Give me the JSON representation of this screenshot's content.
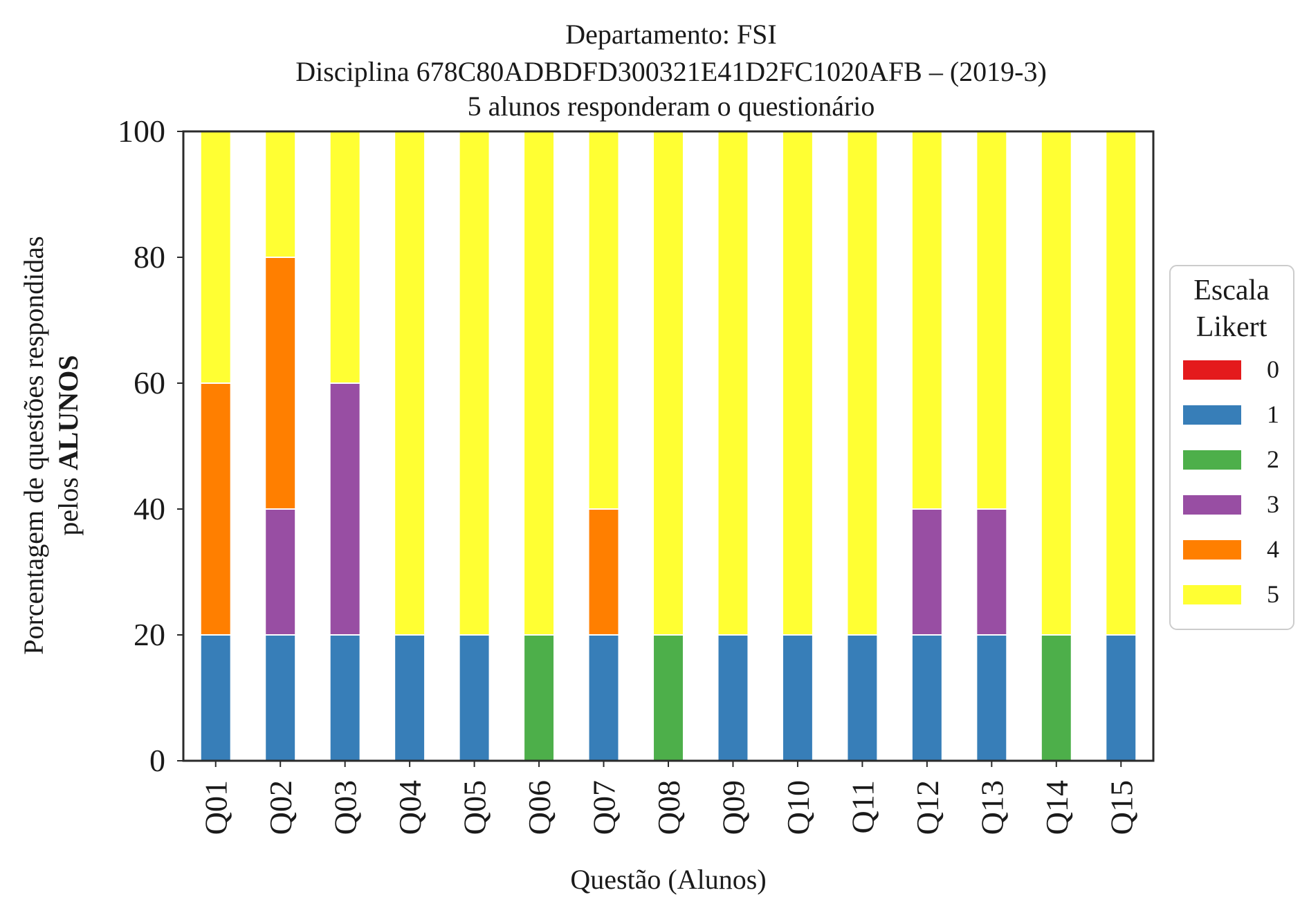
{
  "chart_data": {
    "type": "bar",
    "stacked": true,
    "title_lines": [
      "Departamento: FSI",
      "Disciplina 678C80ADBDFD300321E41D2FC1020AFB – (2019-3)",
      "5 alunos responderam o questionário"
    ],
    "xlabel": "Questão (Alunos)",
    "ylabel_line1": "Porcentagem de questões respondidas",
    "ylabel_line2_prefix": "pelos ",
    "ylabel_line2_bold": "ALUNOS",
    "ylim": [
      0,
      100
    ],
    "yticks": [
      0,
      20,
      40,
      60,
      80,
      100
    ],
    "grid": false,
    "categories": [
      "Q01",
      "Q02",
      "Q03",
      "Q04",
      "Q05",
      "Q06",
      "Q07",
      "Q08",
      "Q09",
      "Q10",
      "Q11",
      "Q12",
      "Q13",
      "Q14",
      "Q15"
    ],
    "legend": {
      "title_lines": [
        "Escala",
        "Likert"
      ],
      "placement": "right-outside"
    },
    "series": [
      {
        "name": "0",
        "color": "#e41a1c",
        "values": [
          0,
          0,
          0,
          0,
          0,
          0,
          0,
          0,
          0,
          0,
          0,
          0,
          0,
          0,
          0
        ]
      },
      {
        "name": "1",
        "color": "#377eb8",
        "values": [
          20,
          20,
          20,
          20,
          20,
          0,
          20,
          0,
          20,
          20,
          20,
          20,
          20,
          0,
          20
        ]
      },
      {
        "name": "2",
        "color": "#4daf4a",
        "values": [
          0,
          0,
          0,
          0,
          0,
          20,
          0,
          20,
          0,
          0,
          0,
          0,
          0,
          20,
          0
        ]
      },
      {
        "name": "3",
        "color": "#984ea3",
        "values": [
          0,
          20,
          40,
          0,
          0,
          0,
          0,
          0,
          0,
          0,
          0,
          20,
          20,
          0,
          0
        ]
      },
      {
        "name": "4",
        "color": "#ff7f00",
        "values": [
          40,
          40,
          0,
          0,
          0,
          0,
          20,
          0,
          0,
          0,
          0,
          0,
          0,
          0,
          0
        ]
      },
      {
        "name": "5",
        "color": "#ffff33",
        "values": [
          40,
          20,
          40,
          80,
          80,
          80,
          60,
          80,
          80,
          80,
          80,
          60,
          60,
          80,
          80
        ]
      }
    ]
  }
}
